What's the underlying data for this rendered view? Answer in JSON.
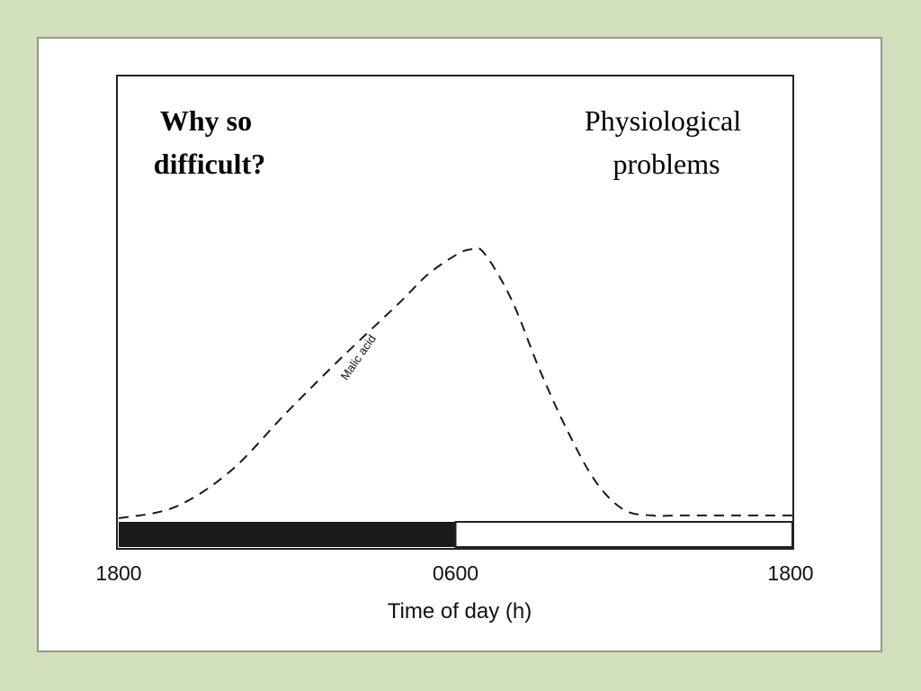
{
  "slide": {
    "heading": [
      "Why so",
      "difficult?"
    ],
    "subheading": [
      "Physiological",
      "problems"
    ]
  },
  "chart_data": {
    "type": "line",
    "xlabel": "Time of day (h)",
    "ylabel": "",
    "x_tick_labels": [
      "1800",
      "0600",
      "1800"
    ],
    "x_range_hours": [
      0,
      24
    ],
    "series": [
      {
        "name": "Malic acid",
        "line_style": "dashed",
        "x_hours": [
          0,
          2,
          4,
          6,
          8,
          10,
          11,
          12,
          12.5,
          13,
          14,
          15,
          16,
          17,
          18,
          19,
          20,
          22,
          24
        ],
        "y": [
          0.0,
          0.04,
          0.17,
          0.38,
          0.58,
          0.77,
          0.87,
          0.94,
          0.96,
          0.95,
          0.78,
          0.53,
          0.31,
          0.13,
          0.03,
          0.01,
          0.01,
          0.01,
          0.01
        ]
      }
    ],
    "photoperiod_bar": {
      "dark_hours": [
        0,
        12
      ],
      "light_hours": [
        12,
        24
      ]
    },
    "colors": {
      "line": "#1a1a1a",
      "dark_period": "#1a1a1a",
      "light_period": "#ffffff",
      "frame": "#222222",
      "background": "#d2dfbc"
    }
  }
}
